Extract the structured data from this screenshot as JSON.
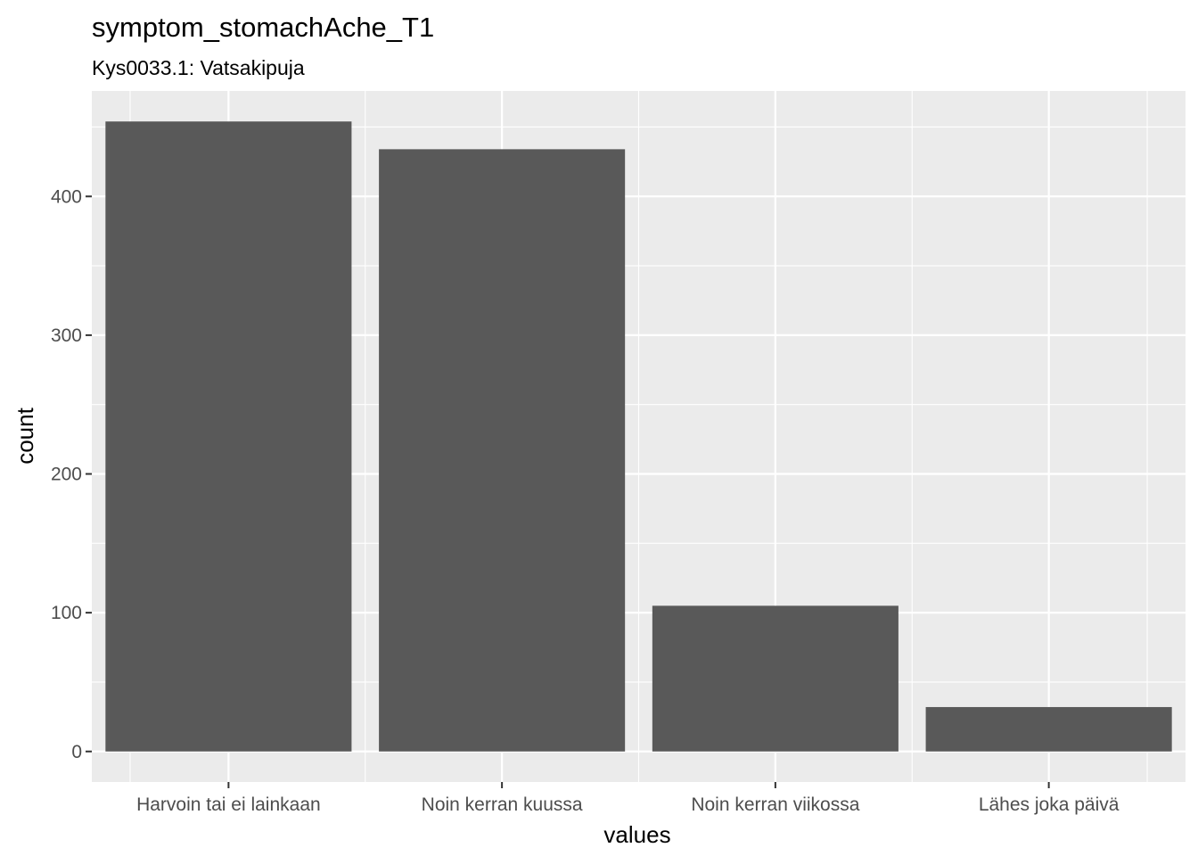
{
  "chart_data": {
    "type": "bar",
    "title": "symptom_stomachAche_T1",
    "subtitle": "Kys0033.1: Vatsakipuja",
    "xlabel": "values",
    "ylabel": "count",
    "categories": [
      "Harvoin tai ei lainkaan",
      "Noin kerran kuussa",
      "Noin kerran viikossa",
      "Lähes joka päivä"
    ],
    "values": [
      454,
      434,
      105,
      32
    ],
    "ylim": [
      -22,
      476
    ],
    "yticks": [
      0,
      100,
      200,
      300,
      400
    ],
    "ytick_labels": [
      "0",
      "100",
      "200",
      "300",
      "400"
    ],
    "grid": true,
    "bar_color": "#595959",
    "panel_color": "#ebebeb",
    "grid_color": "#ffffff"
  }
}
